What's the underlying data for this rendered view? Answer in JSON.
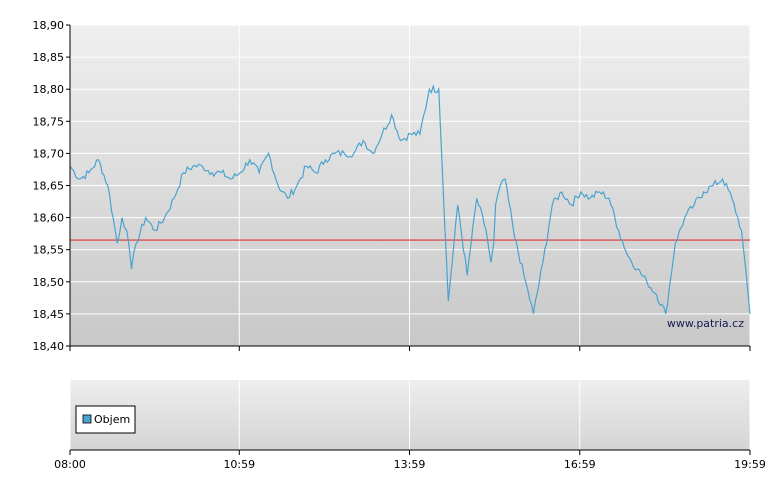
{
  "watermark": "www.patria.cz",
  "chart_data": [
    {
      "type": "line",
      "title": "",
      "xlabel": "",
      "ylabel": "",
      "ylim": [
        18.4,
        18.9
      ],
      "yticks": [
        "18,90",
        "18,85",
        "18,80",
        "18,75",
        "18,70",
        "18,65",
        "18,60",
        "18,55",
        "18,50",
        "18,45",
        "18,40"
      ],
      "xticks": [
        "08:00",
        "10:59",
        "13:59",
        "16:59",
        "19:59"
      ],
      "x_range": [
        "08:00",
        "19:59"
      ],
      "grid": true,
      "reference_line": {
        "value": 18.565,
        "color": "#dd3333"
      },
      "series": [
        {
          "color": "#4aa3cf",
          "x": [
            "08:00",
            "08:10",
            "08:20",
            "08:30",
            "08:40",
            "08:50",
            "08:55",
            "09:00",
            "09:05",
            "09:10",
            "09:20",
            "09:30",
            "09:40",
            "09:50",
            "10:00",
            "10:10",
            "10:20",
            "10:30",
            "10:40",
            "10:50",
            "11:00",
            "11:10",
            "11:20",
            "11:30",
            "11:40",
            "11:50",
            "12:00",
            "12:10",
            "12:20",
            "12:30",
            "12:40",
            "12:50",
            "13:00",
            "13:10",
            "13:20",
            "13:30",
            "13:40",
            "13:50",
            "14:00",
            "14:10",
            "14:20",
            "14:30",
            "14:40",
            "14:50",
            "15:00",
            "15:10",
            "15:20",
            "15:25",
            "15:28",
            "15:30",
            "15:35",
            "15:40",
            "15:50",
            "16:00",
            "16:10",
            "16:20",
            "16:30",
            "16:40",
            "16:50",
            "17:00",
            "17:10",
            "17:20",
            "17:30",
            "17:40",
            "17:50",
            "18:00",
            "18:10",
            "18:20",
            "18:30",
            "18:40",
            "18:50",
            "19:00",
            "19:10",
            "19:20",
            "19:30",
            "19:40",
            "19:50",
            "19:59"
          ],
          "y": [
            18.68,
            18.66,
            18.67,
            18.69,
            18.65,
            18.56,
            18.6,
            18.58,
            18.52,
            18.56,
            18.6,
            18.58,
            18.6,
            18.63,
            18.67,
            18.68,
            18.68,
            18.67,
            18.67,
            18.66,
            18.67,
            18.69,
            18.67,
            18.7,
            18.65,
            18.63,
            18.65,
            18.68,
            18.67,
            18.69,
            18.7,
            18.7,
            18.7,
            18.72,
            18.7,
            18.73,
            18.76,
            18.72,
            18.73,
            18.73,
            18.8,
            18.8,
            18.47,
            18.62,
            18.51,
            18.63,
            18.58,
            18.53,
            18.56,
            18.62,
            18.65,
            18.66,
            18.57,
            18.51,
            18.45,
            18.53,
            18.62,
            18.64,
            18.62,
            18.64,
            18.63,
            18.64,
            18.63,
            18.58,
            18.54,
            18.52,
            18.5,
            18.48,
            18.45,
            18.56,
            18.6,
            18.62,
            18.64,
            18.65,
            18.66,
            18.63,
            18.58,
            18.45
          ]
        }
      ]
    },
    {
      "type": "bar",
      "title": "",
      "xlabel": "",
      "ylabel": "",
      "legend": {
        "entries": [
          "Objem"
        ],
        "placement": "left"
      },
      "legend_color": "#4aa3cf",
      "series": []
    }
  ]
}
